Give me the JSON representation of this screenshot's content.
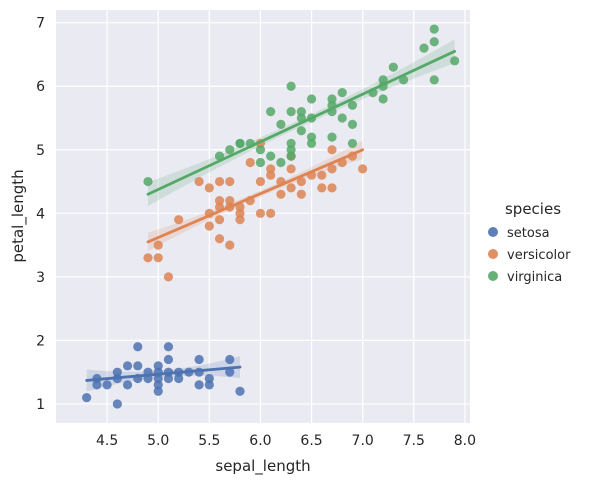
{
  "chart_data": {
    "type": "scatter",
    "title": "",
    "xlabel": "sepal_length",
    "ylabel": "petal_length",
    "xlim": [
      4.0,
      8.05
    ],
    "ylim": [
      0.7,
      7.2
    ],
    "x_ticks": [
      "4.5",
      "5.0",
      "5.5",
      "6.0",
      "6.5",
      "7.0",
      "7.5",
      "8.0"
    ],
    "y_ticks": [
      "1",
      "2",
      "3",
      "4",
      "5",
      "6",
      "7"
    ],
    "grid": true,
    "background": "#eaeaf2",
    "legend": {
      "title": "species",
      "position": "right"
    },
    "series": [
      {
        "name": "setosa",
        "color": "#4c72b0",
        "points": [
          [
            4.3,
            1.1
          ],
          [
            4.4,
            1.3
          ],
          [
            4.4,
            1.4
          ],
          [
            4.5,
            1.3
          ],
          [
            4.6,
            1.0
          ],
          [
            4.6,
            1.4
          ],
          [
            4.6,
            1.5
          ],
          [
            4.7,
            1.3
          ],
          [
            4.7,
            1.6
          ],
          [
            4.8,
            1.4
          ],
          [
            4.8,
            1.6
          ],
          [
            4.8,
            1.9
          ],
          [
            4.9,
            1.4
          ],
          [
            4.9,
            1.5
          ],
          [
            5.0,
            1.2
          ],
          [
            5.0,
            1.3
          ],
          [
            5.0,
            1.4
          ],
          [
            5.0,
            1.5
          ],
          [
            5.0,
            1.6
          ],
          [
            5.1,
            1.4
          ],
          [
            5.1,
            1.5
          ],
          [
            5.1,
            1.7
          ],
          [
            5.1,
            1.9
          ],
          [
            5.2,
            1.4
          ],
          [
            5.2,
            1.5
          ],
          [
            5.3,
            1.5
          ],
          [
            5.4,
            1.3
          ],
          [
            5.4,
            1.5
          ],
          [
            5.4,
            1.7
          ],
          [
            5.5,
            1.3
          ],
          [
            5.5,
            1.4
          ],
          [
            5.7,
            1.5
          ],
          [
            5.7,
            1.7
          ],
          [
            5.8,
            1.2
          ]
        ],
        "fit": [
          [
            4.3,
            1.37
          ],
          [
            5.8,
            1.58
          ]
        ]
      },
      {
        "name": "versicolor",
        "color": "#dd8452",
        "points": [
          [
            4.9,
            3.3
          ],
          [
            5.0,
            3.3
          ],
          [
            5.0,
            3.5
          ],
          [
            5.1,
            3.0
          ],
          [
            5.2,
            3.9
          ],
          [
            5.4,
            4.5
          ],
          [
            5.5,
            4.0
          ],
          [
            5.5,
            4.4
          ],
          [
            5.5,
            3.8
          ],
          [
            5.6,
            3.6
          ],
          [
            5.6,
            3.9
          ],
          [
            5.6,
            4.1
          ],
          [
            5.6,
            4.2
          ],
          [
            5.6,
            4.5
          ],
          [
            5.7,
            3.5
          ],
          [
            5.7,
            4.1
          ],
          [
            5.7,
            4.2
          ],
          [
            5.7,
            4.5
          ],
          [
            5.8,
            3.9
          ],
          [
            5.8,
            4.0
          ],
          [
            5.8,
            4.1
          ],
          [
            5.9,
            4.2
          ],
          [
            5.9,
            4.8
          ],
          [
            6.0,
            4.0
          ],
          [
            6.0,
            4.5
          ],
          [
            6.0,
            5.1
          ],
          [
            6.1,
            4.0
          ],
          [
            6.1,
            4.6
          ],
          [
            6.1,
            4.7
          ],
          [
            6.2,
            4.3
          ],
          [
            6.2,
            4.5
          ],
          [
            6.3,
            4.4
          ],
          [
            6.3,
            4.7
          ],
          [
            6.3,
            4.9
          ],
          [
            6.4,
            4.3
          ],
          [
            6.4,
            4.5
          ],
          [
            6.5,
            4.6
          ],
          [
            6.6,
            4.4
          ],
          [
            6.6,
            4.6
          ],
          [
            6.7,
            4.4
          ],
          [
            6.7,
            4.7
          ],
          [
            6.7,
            5.0
          ],
          [
            6.8,
            4.8
          ],
          [
            6.9,
            4.9
          ],
          [
            7.0,
            4.7
          ]
        ],
        "fit": [
          [
            4.9,
            3.55
          ],
          [
            7.0,
            5.0
          ]
        ]
      },
      {
        "name": "virginica",
        "color": "#55a868",
        "points": [
          [
            4.9,
            4.5
          ],
          [
            5.6,
            4.9
          ],
          [
            5.7,
            5.0
          ],
          [
            5.8,
            5.1
          ],
          [
            5.8,
            5.1
          ],
          [
            5.9,
            5.1
          ],
          [
            6.0,
            4.8
          ],
          [
            6.0,
            5.0
          ],
          [
            6.1,
            4.9
          ],
          [
            6.1,
            5.6
          ],
          [
            6.2,
            4.8
          ],
          [
            6.2,
            5.4
          ],
          [
            6.3,
            4.9
          ],
          [
            6.3,
            5.0
          ],
          [
            6.3,
            5.1
          ],
          [
            6.3,
            5.6
          ],
          [
            6.3,
            6.0
          ],
          [
            6.4,
            5.3
          ],
          [
            6.4,
            5.5
          ],
          [
            6.4,
            5.6
          ],
          [
            6.5,
            5.1
          ],
          [
            6.5,
            5.2
          ],
          [
            6.5,
            5.5
          ],
          [
            6.5,
            5.8
          ],
          [
            6.7,
            5.2
          ],
          [
            6.7,
            5.6
          ],
          [
            6.7,
            5.7
          ],
          [
            6.7,
            5.8
          ],
          [
            6.8,
            5.5
          ],
          [
            6.8,
            5.9
          ],
          [
            6.9,
            5.1
          ],
          [
            6.9,
            5.4
          ],
          [
            6.9,
            5.7
          ],
          [
            7.1,
            5.9
          ],
          [
            7.2,
            5.8
          ],
          [
            7.2,
            6.0
          ],
          [
            7.2,
            6.1
          ],
          [
            7.3,
            6.3
          ],
          [
            7.4,
            6.1
          ],
          [
            7.6,
            6.6
          ],
          [
            7.7,
            6.1
          ],
          [
            7.7,
            6.7
          ],
          [
            7.7,
            6.9
          ],
          [
            7.9,
            6.4
          ]
        ],
        "fit": [
          [
            4.9,
            4.3
          ],
          [
            7.9,
            6.55
          ]
        ]
      }
    ]
  }
}
